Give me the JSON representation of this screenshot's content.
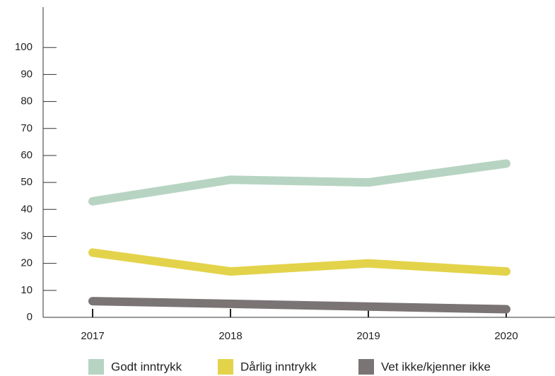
{
  "chart_data": {
    "type": "line",
    "categories": [
      "2017",
      "2018",
      "2019",
      "2020"
    ],
    "series": [
      {
        "name": "Godt inntrykk",
        "color": "#b7d4c2",
        "values": [
          43,
          51,
          50,
          57
        ]
      },
      {
        "name": "Dårlig inntrykk",
        "color": "#e3d34a",
        "values": [
          24,
          17,
          20,
          17
        ]
      },
      {
        "name": "Vet ikke/kjenner ikke",
        "color": "#7a7475",
        "values": [
          6,
          5,
          4,
          3
        ]
      }
    ],
    "ylim": [
      0,
      115
    ],
    "yticks": [
      0,
      10,
      20,
      30,
      40,
      50,
      60,
      70,
      80,
      90,
      100
    ]
  }
}
